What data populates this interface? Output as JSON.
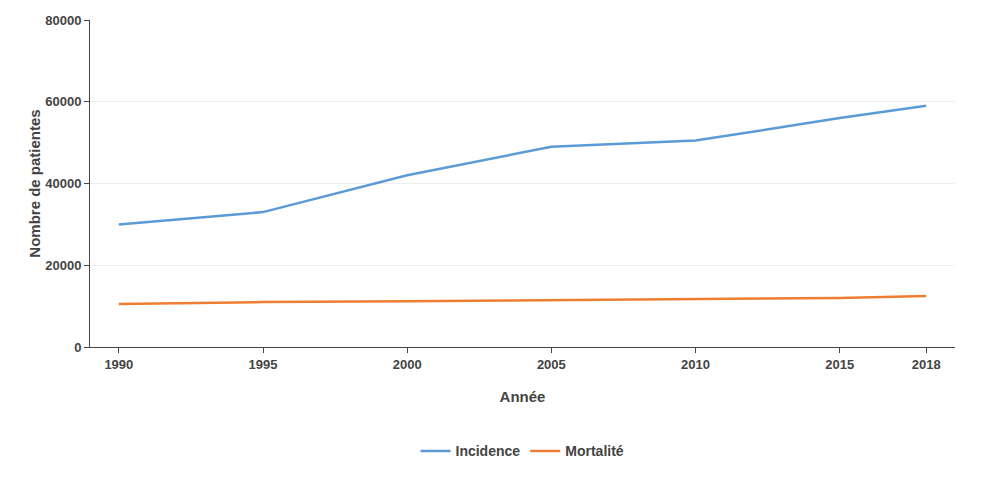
{
  "chart_data": {
    "type": "line",
    "x": [
      1990,
      1995,
      2000,
      2005,
      2010,
      2015,
      2018
    ],
    "series": [
      {
        "name": "Incidence",
        "color": "#5B9BD5",
        "values": [
          30000,
          33000,
          42000,
          49000,
          50500,
          56000,
          59000
        ]
      },
      {
        "name": "Mortalité",
        "color": "#ED7D31",
        "values": [
          10500,
          11000,
          11200,
          11500,
          11800,
          12000,
          12500
        ]
      }
    ],
    "xlabel": "Année",
    "ylabel": "Nombre de patientes",
    "xlim": [
      1989,
      2019
    ],
    "xticks": [
      1990,
      1995,
      2000,
      2005,
      2010,
      2015,
      2018
    ],
    "ylim": [
      0,
      80000
    ],
    "yticks": [
      0,
      20000,
      40000,
      60000,
      80000
    ],
    "grid": "y",
    "legend": "bottom"
  }
}
